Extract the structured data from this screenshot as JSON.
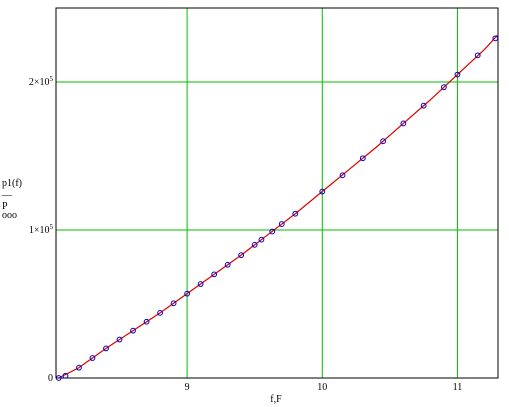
{
  "chart_data": {
    "type": "line",
    "xlabel": "f,F",
    "ylabel_lines": [
      "p1(f)",
      "P"
    ],
    "legend_symbols": [
      "—",
      "ooo"
    ],
    "colors": {
      "line": "#e00000",
      "markers": "#0000c8",
      "grid": "#00c000",
      "frame": "#000000"
    },
    "grid": true,
    "xlim": [
      8.03,
      11.3
    ],
    "ylim": [
      0,
      250000
    ],
    "x_ticks": [
      {
        "value": 9,
        "label": "9"
      },
      {
        "value": 10,
        "label": "10"
      },
      {
        "value": 11,
        "label": "11"
      }
    ],
    "y_ticks": [
      {
        "value": 0,
        "label": "0",
        "sup": ""
      },
      {
        "value": 100000,
        "label": "1×10",
        "sup": "5"
      },
      {
        "value": 200000,
        "label": "2×10",
        "sup": "5"
      }
    ],
    "series": [
      {
        "style": "line",
        "x": [
          8.05,
          8.2,
          8.4,
          8.6,
          8.8,
          9.0,
          9.2,
          9.4,
          9.6,
          9.8,
          10.0,
          10.2,
          10.4,
          10.6,
          10.8,
          11.0,
          11.2,
          11.3
        ],
        "values": [
          0,
          7000,
          20000,
          32000,
          44000,
          57000,
          70000,
          83000,
          97000,
          111000,
          126000,
          141000,
          156000,
          172000,
          188000,
          205000,
          222000,
          232000
        ]
      },
      {
        "style": "markers",
        "x": [
          8.05,
          8.1,
          8.2,
          8.3,
          8.4,
          8.5,
          8.6,
          8.7,
          8.8,
          8.9,
          9.0,
          9.1,
          9.2,
          9.3,
          9.4,
          9.5,
          9.55,
          9.63,
          9.7,
          9.8,
          10.0,
          10.15,
          10.3,
          10.45,
          10.6,
          10.75,
          10.9,
          11.0,
          11.15,
          11.28
        ],
        "values": [
          0,
          1500,
          7000,
          13500,
          20000,
          26000,
          32000,
          38000,
          44000,
          50500,
          57000,
          63500,
          70000,
          76500,
          83000,
          90000,
          93500,
          99000,
          104000,
          111000,
          126000,
          137000,
          148500,
          160000,
          172000,
          184000,
          196500,
          205000,
          218000,
          229500
        ]
      }
    ]
  }
}
